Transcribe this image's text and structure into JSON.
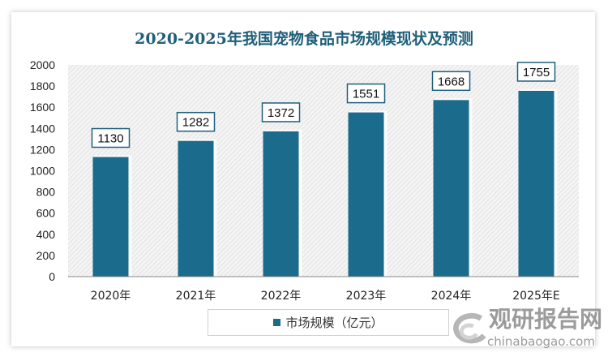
{
  "chart_data": {
    "type": "bar",
    "title": "2020-2025年我国宠物食品市场规模现状及预测",
    "categories": [
      "2020年",
      "2021年",
      "2022年",
      "2023年",
      "2024年",
      "2025年E"
    ],
    "series": [
      {
        "name": "市场规模（亿元）",
        "values": [
          1130,
          1282,
          1372,
          1551,
          1668,
          1755
        ]
      }
    ],
    "ylim": [
      0,
      2000
    ],
    "yticks": [
      0,
      200,
      400,
      600,
      800,
      1000,
      1200,
      1400,
      1600,
      1800,
      2000
    ],
    "grid": false,
    "legend": "bottom",
    "bar_color": "#1b6b8c",
    "data_labels": true
  },
  "watermark": {
    "cn": "观研报告网",
    "en": "chinabaogao.com"
  }
}
